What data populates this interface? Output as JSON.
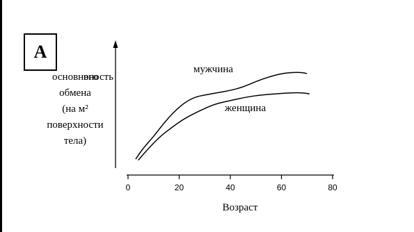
{
  "panel_label": "A",
  "chart_data": {
    "type": "line",
    "xlabel": "Возраст",
    "ylabel_lines": [
      "вность",
      "основного",
      "обмена",
      "(на м²",
      "поверхности",
      "тела)"
    ],
    "xlim": [
      0,
      80
    ],
    "xticks": [
      0,
      20,
      40,
      60,
      80
    ],
    "ylim": [
      0,
      1
    ],
    "grid": false,
    "series": [
      {
        "name": "мужчина",
        "x": [
          3,
          6,
          10,
          14,
          18,
          22,
          26,
          30,
          35,
          40,
          45,
          50,
          55,
          60,
          64,
          68,
          70
        ],
        "y": [
          0.08,
          0.18,
          0.28,
          0.4,
          0.5,
          0.58,
          0.63,
          0.65,
          0.67,
          0.69,
          0.72,
          0.77,
          0.81,
          0.84,
          0.85,
          0.85,
          0.84
        ]
      },
      {
        "name": "женщина",
        "x": [
          4,
          7,
          12,
          17,
          22,
          28,
          34,
          40,
          46,
          52,
          58,
          64,
          68,
          71
        ],
        "y": [
          0.07,
          0.15,
          0.27,
          0.36,
          0.44,
          0.51,
          0.57,
          0.6,
          0.63,
          0.65,
          0.66,
          0.67,
          0.67,
          0.66
        ]
      }
    ]
  }
}
